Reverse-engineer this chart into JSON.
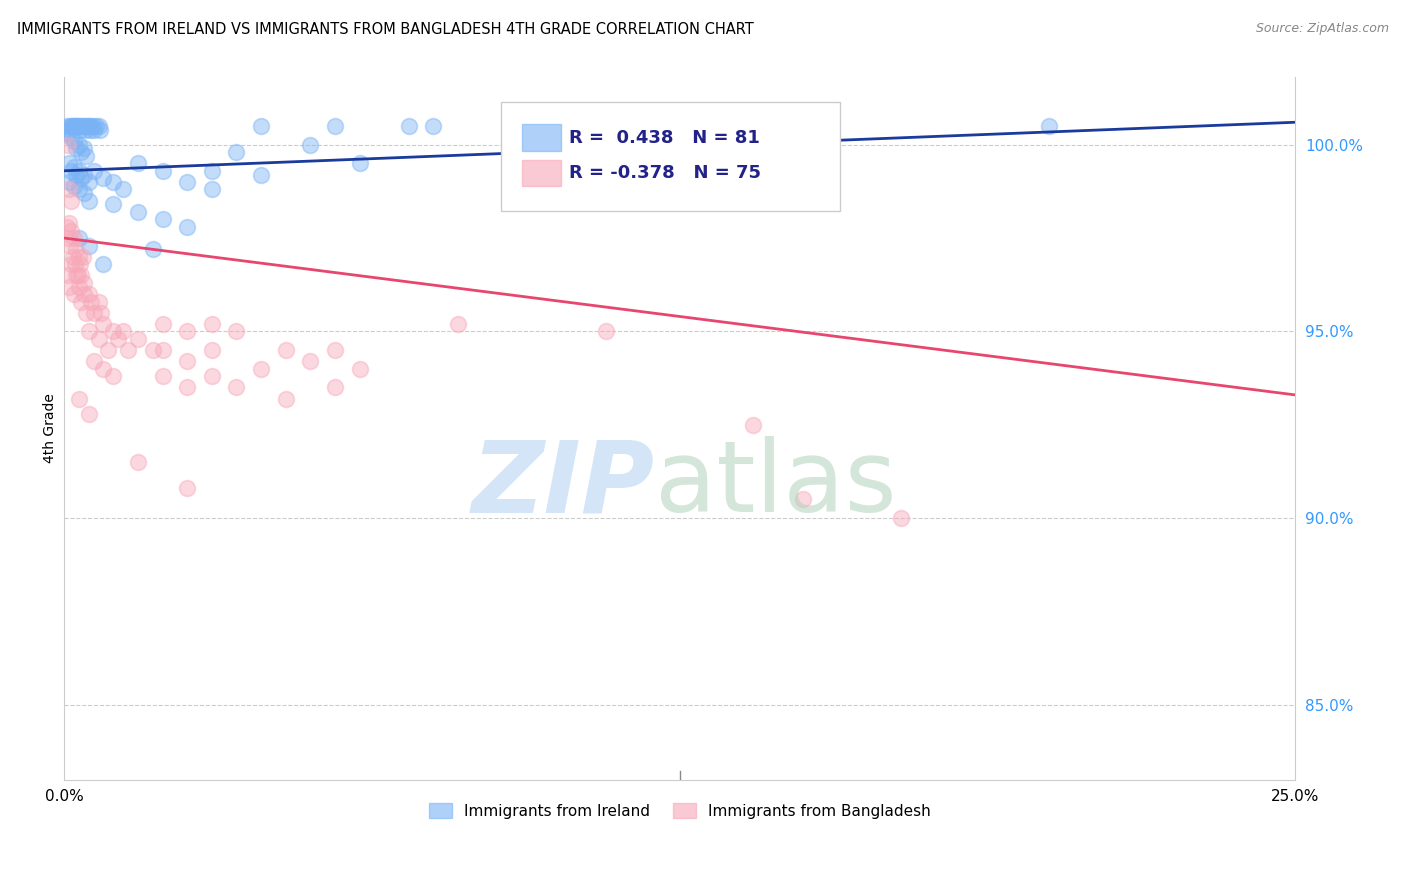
{
  "title": "IMMIGRANTS FROM IRELAND VS IMMIGRANTS FROM BANGLADESH 4TH GRADE CORRELATION CHART",
  "source": "Source: ZipAtlas.com",
  "ylabel": "4th Grade",
  "ylabel_right_ticks": [
    85.0,
    90.0,
    95.0,
    100.0
  ],
  "xlim": [
    0.0,
    25.0
  ],
  "ylim": [
    83.0,
    101.8
  ],
  "ireland_R": 0.438,
  "ireland_N": 81,
  "bangladesh_R": -0.378,
  "bangladesh_N": 75,
  "ireland_color": "#7ab3f5",
  "bangladesh_color": "#f7a8b8",
  "ireland_line_color": "#1a3a9c",
  "bangladesh_line_color": "#e8466e",
  "ireland_trend": [
    0.0,
    99.3,
    25.0,
    100.6
  ],
  "bangladesh_trend": [
    0.0,
    97.5,
    25.0,
    93.3
  ],
  "legend_ireland": "Immigrants from Ireland",
  "legend_bangladesh": "Immigrants from Bangladesh",
  "ireland_scatter": [
    [
      0.05,
      100.5
    ],
    [
      0.1,
      100.4
    ],
    [
      0.12,
      100.5
    ],
    [
      0.15,
      100.5
    ],
    [
      0.18,
      100.5
    ],
    [
      0.2,
      100.5
    ],
    [
      0.22,
      100.5
    ],
    [
      0.25,
      100.5
    ],
    [
      0.28,
      100.5
    ],
    [
      0.3,
      100.5
    ],
    [
      0.32,
      100.4
    ],
    [
      0.35,
      100.5
    ],
    [
      0.38,
      100.5
    ],
    [
      0.4,
      100.5
    ],
    [
      0.42,
      100.4
    ],
    [
      0.45,
      100.5
    ],
    [
      0.48,
      100.5
    ],
    [
      0.5,
      100.5
    ],
    [
      0.52,
      100.4
    ],
    [
      0.55,
      100.5
    ],
    [
      0.58,
      100.5
    ],
    [
      0.6,
      100.4
    ],
    [
      0.65,
      100.5
    ],
    [
      0.7,
      100.5
    ],
    [
      0.72,
      100.4
    ],
    [
      0.08,
      100.3
    ],
    [
      0.15,
      100.2
    ],
    [
      0.2,
      100.1
    ],
    [
      0.25,
      99.9
    ],
    [
      0.3,
      100.0
    ],
    [
      0.35,
      99.8
    ],
    [
      0.4,
      99.9
    ],
    [
      0.45,
      99.7
    ],
    [
      0.1,
      99.5
    ],
    [
      0.15,
      99.3
    ],
    [
      0.2,
      99.4
    ],
    [
      0.25,
      99.2
    ],
    [
      0.3,
      99.3
    ],
    [
      0.35,
      99.1
    ],
    [
      0.4,
      99.2
    ],
    [
      0.5,
      99.0
    ],
    [
      0.1,
      99.0
    ],
    [
      0.2,
      98.9
    ],
    [
      0.3,
      98.8
    ],
    [
      0.4,
      98.7
    ],
    [
      0.6,
      99.3
    ],
    [
      0.8,
      99.1
    ],
    [
      1.0,
      99.0
    ],
    [
      1.2,
      98.8
    ],
    [
      1.5,
      99.5
    ],
    [
      2.0,
      99.3
    ],
    [
      2.5,
      99.0
    ],
    [
      3.0,
      98.8
    ],
    [
      0.5,
      98.5
    ],
    [
      1.0,
      98.4
    ],
    [
      1.5,
      98.2
    ],
    [
      2.0,
      98.0
    ],
    [
      2.5,
      97.8
    ],
    [
      0.3,
      97.5
    ],
    [
      0.5,
      97.3
    ],
    [
      4.0,
      100.5
    ],
    [
      5.5,
      100.5
    ],
    [
      7.0,
      100.5
    ],
    [
      3.5,
      99.8
    ],
    [
      5.0,
      100.0
    ],
    [
      4.0,
      99.2
    ],
    [
      6.0,
      99.5
    ],
    [
      3.0,
      99.3
    ],
    [
      7.5,
      100.5
    ],
    [
      10.0,
      100.5
    ],
    [
      12.0,
      100.4
    ],
    [
      15.0,
      100.5
    ],
    [
      20.0,
      100.5
    ],
    [
      1.8,
      97.2
    ],
    [
      0.8,
      96.8
    ]
  ],
  "bangladesh_scatter": [
    [
      0.05,
      97.8
    ],
    [
      0.08,
      97.5
    ],
    [
      0.1,
      97.9
    ],
    [
      0.12,
      97.3
    ],
    [
      0.15,
      97.7
    ],
    [
      0.18,
      97.0
    ],
    [
      0.2,
      97.5
    ],
    [
      0.22,
      96.8
    ],
    [
      0.25,
      97.2
    ],
    [
      0.28,
      96.5
    ],
    [
      0.3,
      97.0
    ],
    [
      0.32,
      96.8
    ],
    [
      0.35,
      96.5
    ],
    [
      0.38,
      97.0
    ],
    [
      0.4,
      96.3
    ],
    [
      0.08,
      96.5
    ],
    [
      0.1,
      96.2
    ],
    [
      0.15,
      96.8
    ],
    [
      0.2,
      96.0
    ],
    [
      0.25,
      96.5
    ],
    [
      0.3,
      96.2
    ],
    [
      0.35,
      95.8
    ],
    [
      0.4,
      96.0
    ],
    [
      0.45,
      95.5
    ],
    [
      0.5,
      96.0
    ],
    [
      0.55,
      95.8
    ],
    [
      0.6,
      95.5
    ],
    [
      0.7,
      95.8
    ],
    [
      0.75,
      95.5
    ],
    [
      0.8,
      95.2
    ],
    [
      0.5,
      95.0
    ],
    [
      0.7,
      94.8
    ],
    [
      0.9,
      94.5
    ],
    [
      1.0,
      95.0
    ],
    [
      1.1,
      94.8
    ],
    [
      1.2,
      95.0
    ],
    [
      1.3,
      94.5
    ],
    [
      1.5,
      94.8
    ],
    [
      1.8,
      94.5
    ],
    [
      0.6,
      94.2
    ],
    [
      0.8,
      94.0
    ],
    [
      1.0,
      93.8
    ],
    [
      2.0,
      95.2
    ],
    [
      2.5,
      95.0
    ],
    [
      3.0,
      95.2
    ],
    [
      3.5,
      95.0
    ],
    [
      2.0,
      94.5
    ],
    [
      2.5,
      94.2
    ],
    [
      3.0,
      94.5
    ],
    [
      2.0,
      93.8
    ],
    [
      2.5,
      93.5
    ],
    [
      3.0,
      93.8
    ],
    [
      3.5,
      93.5
    ],
    [
      4.0,
      94.0
    ],
    [
      4.5,
      94.5
    ],
    [
      5.0,
      94.2
    ],
    [
      5.5,
      94.5
    ],
    [
      6.0,
      94.0
    ],
    [
      4.5,
      93.2
    ],
    [
      5.5,
      93.5
    ],
    [
      0.3,
      93.2
    ],
    [
      0.5,
      92.8
    ],
    [
      1.5,
      91.5
    ],
    [
      2.5,
      90.8
    ],
    [
      8.0,
      95.2
    ],
    [
      11.0,
      95.0
    ],
    [
      14.0,
      92.5
    ],
    [
      15.0,
      90.5
    ],
    [
      17.0,
      90.0
    ],
    [
      0.1,
      98.8
    ],
    [
      0.15,
      98.5
    ],
    [
      0.08,
      100.0
    ]
  ]
}
